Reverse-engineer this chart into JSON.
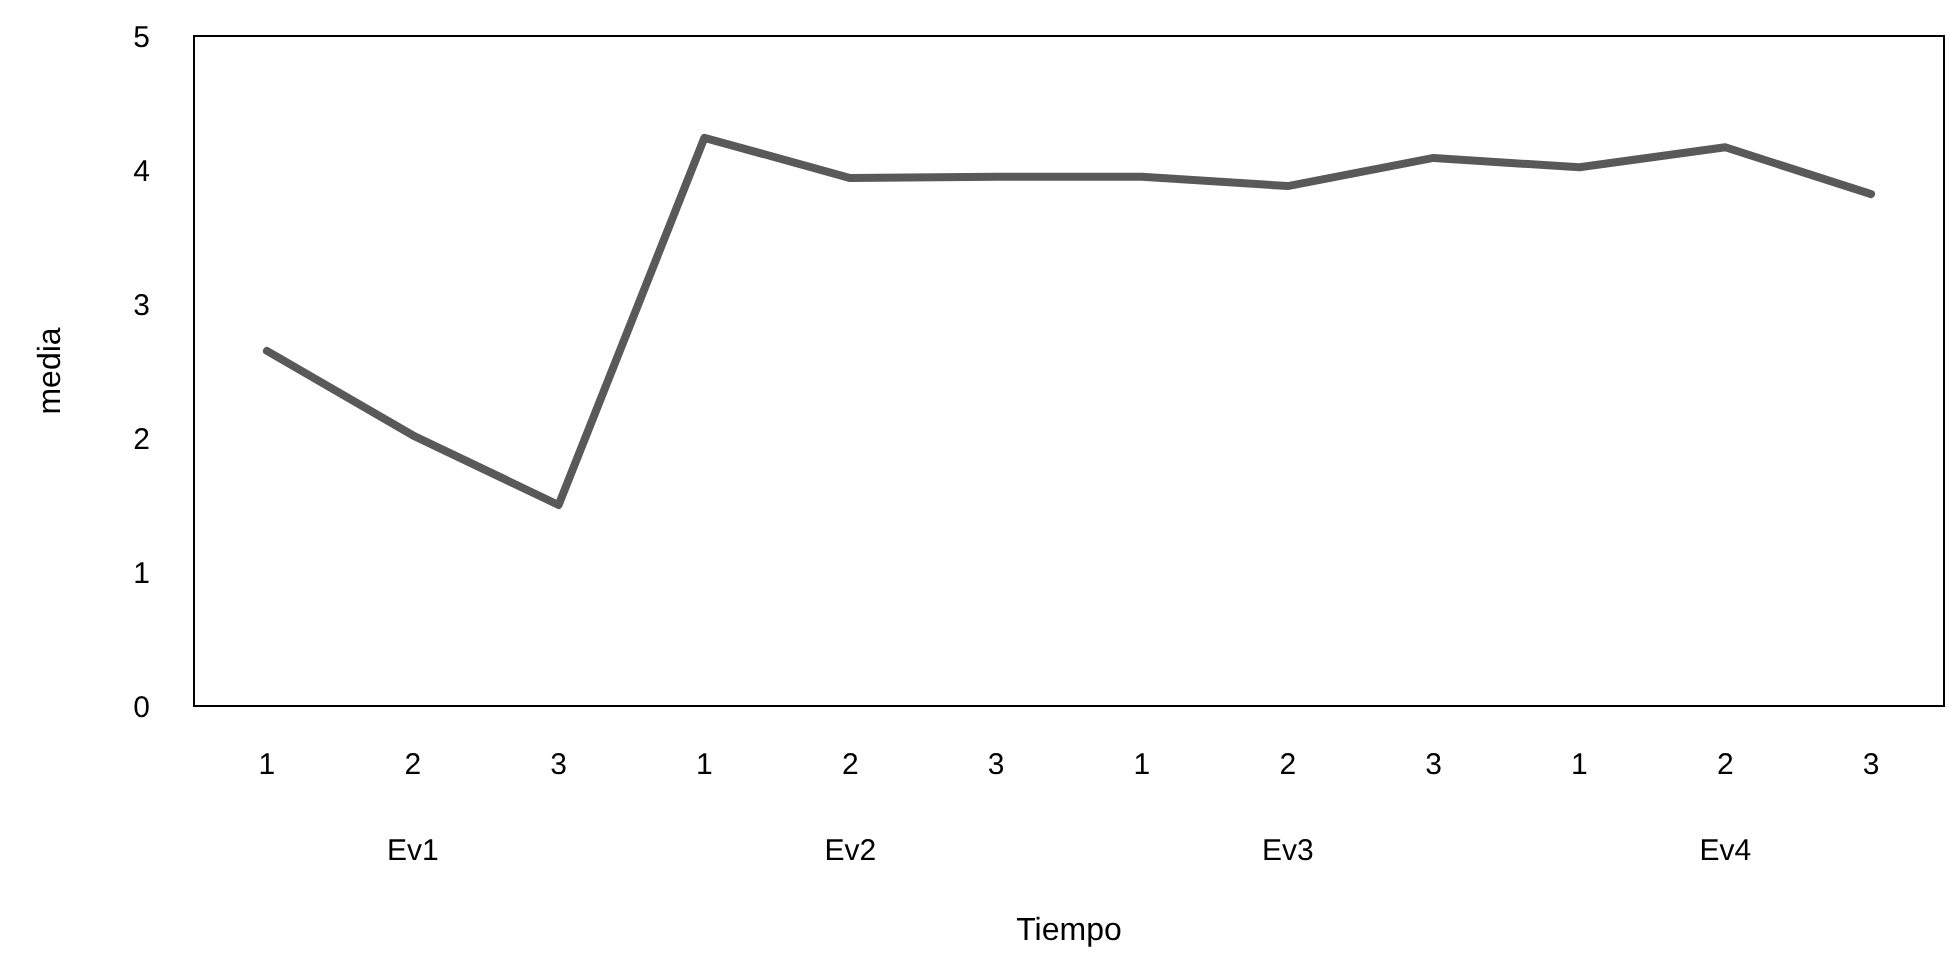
{
  "chart_data": {
    "type": "line",
    "xlabel": "Tiempo",
    "ylabel": "media",
    "categories": [
      "1",
      "2",
      "3",
      "1",
      "2",
      "3",
      "1",
      "2",
      "3",
      "1",
      "2",
      "3"
    ],
    "series": [
      {
        "color": "#595959",
        "values": [
          2.65,
          2.02,
          1.5,
          4.24,
          3.94,
          3.95,
          3.95,
          3.88,
          4.09,
          4.02,
          4.17,
          3.82
        ]
      }
    ],
    "ylim": [
      0,
      5
    ],
    "yticks": [
      0,
      1,
      2,
      3,
      4,
      5
    ],
    "grid": false,
    "marker": "none",
    "line_style": "solid",
    "annotations": [
      "Ev1",
      "Ev2",
      "Ev3",
      "Ev4"
    ]
  }
}
